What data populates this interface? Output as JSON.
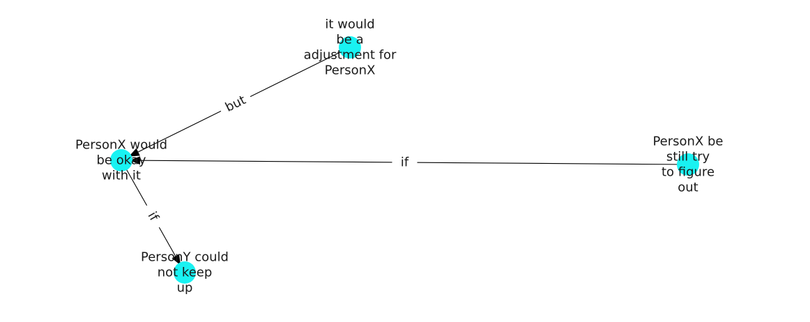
{
  "graph": {
    "node_color": "#19f2f2",
    "edge_color": "#000000",
    "text_color": "#1a1a1a",
    "nodes": [
      {
        "id": "n1",
        "lines": [
          "it would",
          "be a",
          "adjustment for",
          "PersonX"
        ]
      },
      {
        "id": "n2",
        "lines": [
          "PersonX would",
          "be okay",
          "with it"
        ]
      },
      {
        "id": "n3",
        "lines": [
          "PersonX be",
          "still try",
          "to figure",
          "out"
        ]
      },
      {
        "id": "n4",
        "lines": [
          "PersonY could",
          "not keep",
          "up"
        ]
      }
    ],
    "edges": [
      {
        "id": "e1",
        "source": "n1",
        "target": "n2",
        "label": "but"
      },
      {
        "id": "e2",
        "source": "n3",
        "target": "n2",
        "label": "if"
      },
      {
        "id": "e3",
        "source": "n2",
        "target": "n4",
        "label": "if"
      }
    ]
  }
}
